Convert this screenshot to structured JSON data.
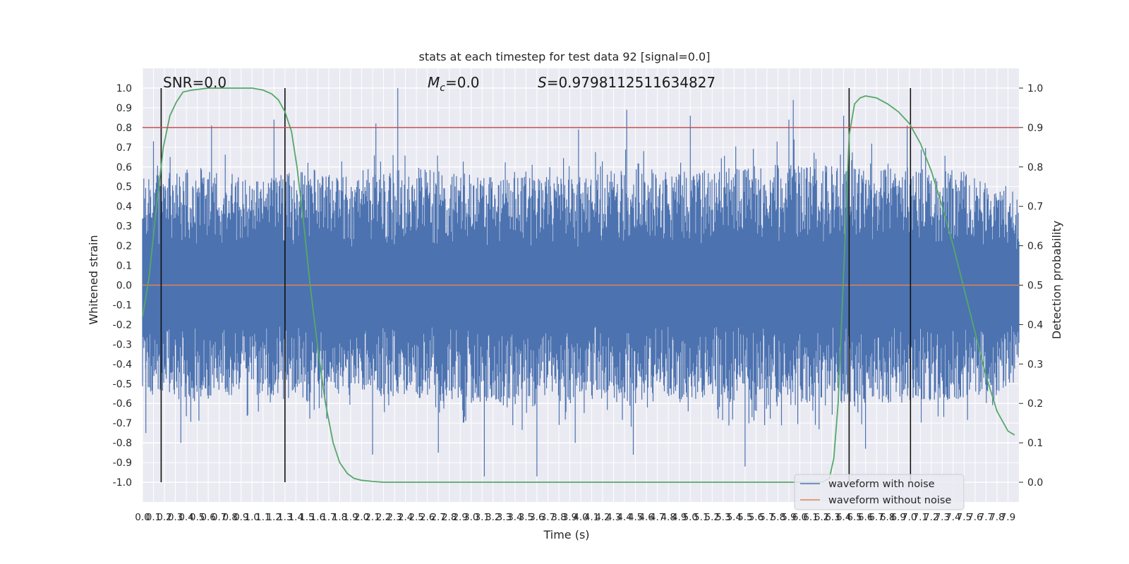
{
  "chart_data": {
    "type": "line",
    "title": "stats at each timestep for test data 92 [signal=0.0]",
    "xlabel": "Time (s)",
    "ylabel_left": "Whitened strain",
    "ylabel_right": "Detection probability",
    "xlim": [
      0.0,
      8.0
    ],
    "ylim_left": [
      -1.1,
      1.1
    ],
    "ylim_right": [
      -0.05,
      1.05
    ],
    "xticks": [
      "0.0",
      "0.1",
      "0.2",
      "0.3",
      "0.4",
      "0.5",
      "0.6",
      "0.7",
      "0.8",
      "0.9",
      "1.0",
      "1.1",
      "1.2",
      "1.3",
      "1.4",
      "1.5",
      "1.6",
      "1.7",
      "1.8",
      "1.9",
      "2.0",
      "2.1",
      "2.2",
      "2.3",
      "2.4",
      "2.5",
      "2.6",
      "2.7",
      "2.8",
      "2.9",
      "3.0",
      "3.1",
      "3.2",
      "3.3",
      "3.4",
      "3.5",
      "3.6",
      "3.7",
      "3.8",
      "3.9",
      "4.0",
      "4.1",
      "4.2",
      "4.3",
      "4.4",
      "4.5",
      "4.6",
      "4.7",
      "4.8",
      "4.9",
      "5.0",
      "5.1",
      "5.2",
      "5.3",
      "5.4",
      "5.5",
      "5.6",
      "5.7",
      "5.8",
      "5.9",
      "6.0",
      "6.1",
      "6.2",
      "6.3",
      "6.4",
      "6.5",
      "6.6",
      "6.7",
      "6.8",
      "6.9",
      "7.0",
      "7.1",
      "7.2",
      "7.3",
      "7.4",
      "7.5",
      "7.6",
      "7.7",
      "7.8",
      "7.9"
    ],
    "yticks_left": [
      "1.0",
      "0.9",
      "0.8",
      "0.7",
      "0.6",
      "0.5",
      "0.4",
      "0.3",
      "0.2",
      "0.1",
      "0.0",
      "-0.1",
      "-0.2",
      "-0.3",
      "-0.4",
      "-0.5",
      "-0.6",
      "-0.7",
      "-0.8",
      "-0.9",
      "-1.0"
    ],
    "yticks_right": [
      "1.0",
      "0.9",
      "0.8",
      "0.7",
      "0.6",
      "0.5",
      "0.4",
      "0.3",
      "0.2",
      "0.1",
      "0.0"
    ],
    "annotations": {
      "snr": "SNR=0.0",
      "mc": "=0.0",
      "mc_symbol": "M",
      "mc_sub": "c",
      "s": "=0.9798112511634827",
      "s_symbol": "S"
    },
    "threshold": {
      "axis": "right",
      "value": 0.9,
      "color": "#c44e52"
    },
    "vlines_x": [
      0.17,
      1.3,
      6.45,
      7.01
    ],
    "series": [
      {
        "name": "waveform with noise",
        "axis": "left",
        "color": "#4c72b0",
        "note": "dense noise trace, roughly symmetric about 0",
        "envelope_x": [
          0.0,
          0.5,
          1.0,
          1.5,
          2.0,
          2.5,
          3.0,
          3.5,
          4.0,
          4.5,
          5.0,
          5.5,
          6.0,
          6.5,
          7.0,
          7.5,
          8.0
        ],
        "envelope_upper": [
          0.55,
          0.6,
          0.55,
          0.58,
          0.55,
          0.6,
          0.56,
          0.55,
          0.55,
          0.6,
          0.58,
          0.6,
          0.62,
          0.6,
          0.6,
          0.58,
          0.45
        ],
        "envelope_lower": [
          -0.55,
          -0.6,
          -0.55,
          -0.6,
          -0.56,
          -0.58,
          -0.6,
          -0.62,
          -0.58,
          -0.6,
          -0.58,
          -0.6,
          -0.62,
          -0.6,
          -0.6,
          -0.58,
          -0.5
        ],
        "spikes": [
          {
            "x": 0.03,
            "y": -0.75
          },
          {
            "x": 0.1,
            "y": 0.73
          },
          {
            "x": 0.35,
            "y": -0.8
          },
          {
            "x": 0.63,
            "y": 0.81
          },
          {
            "x": 1.2,
            "y": 0.84
          },
          {
            "x": 1.3,
            "y": 0.78
          },
          {
            "x": 2.13,
            "y": 0.82
          },
          {
            "x": 2.1,
            "y": -0.86
          },
          {
            "x": 2.33,
            "y": 1.0
          },
          {
            "x": 2.7,
            "y": -0.85
          },
          {
            "x": 3.12,
            "y": -0.97
          },
          {
            "x": 3.6,
            "y": -0.97
          },
          {
            "x": 3.98,
            "y": 0.79
          },
          {
            "x": 3.95,
            "y": -0.8
          },
          {
            "x": 4.42,
            "y": 0.89
          },
          {
            "x": 4.48,
            "y": -0.86
          },
          {
            "x": 5.0,
            "y": 0.86
          },
          {
            "x": 5.5,
            "y": -0.92
          },
          {
            "x": 5.94,
            "y": 0.94
          },
          {
            "x": 5.9,
            "y": 0.84
          },
          {
            "x": 6.4,
            "y": 0.86
          },
          {
            "x": 6.6,
            "y": -0.83
          },
          {
            "x": 6.98,
            "y": 0.81
          }
        ]
      },
      {
        "name": "waveform without noise",
        "axis": "left",
        "color": "#dd8452",
        "x": [
          0.0,
          8.0
        ],
        "y": [
          0.0,
          0.0
        ]
      },
      {
        "name": "detection probability",
        "axis": "right",
        "color": "#55a868",
        "x": [
          0.0,
          0.06,
          0.12,
          0.19,
          0.25,
          0.31,
          0.37,
          0.45,
          0.6,
          0.8,
          1.0,
          1.1,
          1.18,
          1.24,
          1.3,
          1.36,
          1.41,
          1.47,
          1.53,
          1.6,
          1.67,
          1.74,
          1.8,
          1.87,
          1.93,
          2.0,
          2.1,
          2.2,
          2.5,
          3.0,
          4.0,
          5.0,
          6.0,
          6.2,
          6.27,
          6.31,
          6.35,
          6.38,
          6.41,
          6.45,
          6.5,
          6.55,
          6.6,
          6.7,
          6.8,
          6.9,
          7.0,
          7.1,
          7.2,
          7.3,
          7.4,
          7.5,
          7.6,
          7.7,
          7.8,
          7.9,
          7.96
        ],
        "y": [
          0.42,
          0.52,
          0.68,
          0.85,
          0.93,
          0.965,
          0.99,
          0.995,
          1.0,
          1.0,
          1.0,
          0.995,
          0.985,
          0.97,
          0.94,
          0.89,
          0.8,
          0.66,
          0.5,
          0.34,
          0.2,
          0.1,
          0.05,
          0.022,
          0.01,
          0.005,
          0.002,
          0.0,
          0.0,
          0.0,
          0.0,
          0.0,
          0.0,
          0.0,
          0.01,
          0.06,
          0.2,
          0.4,
          0.6,
          0.88,
          0.96,
          0.975,
          0.98,
          0.975,
          0.96,
          0.94,
          0.91,
          0.86,
          0.79,
          0.7,
          0.6,
          0.49,
          0.38,
          0.27,
          0.18,
          0.13,
          0.12
        ]
      }
    ],
    "legend": {
      "position": "lower-right",
      "entries": [
        "waveform with noise",
        "waveform without noise"
      ]
    },
    "style": {
      "background": "#eaeaf2",
      "grid": true,
      "grid_color": "#ffffff"
    }
  }
}
